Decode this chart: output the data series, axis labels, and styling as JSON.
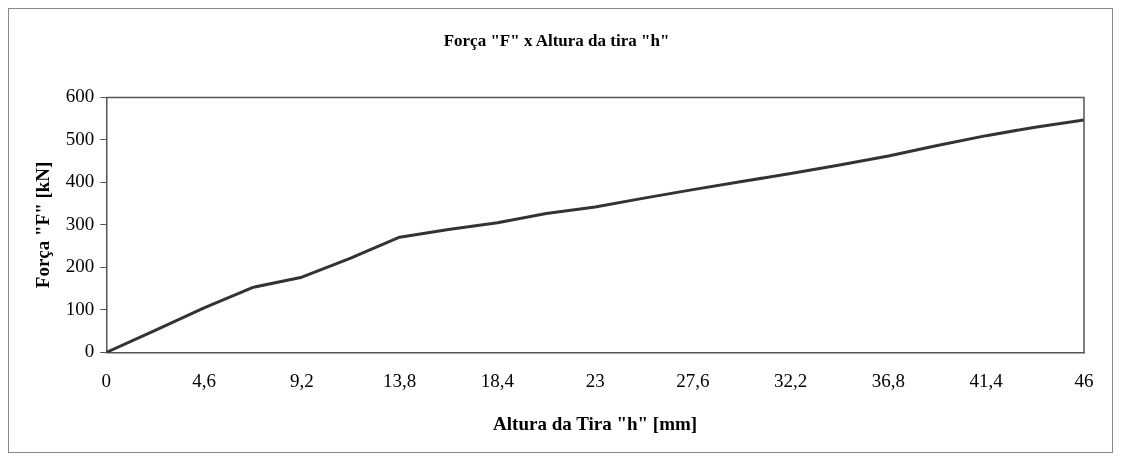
{
  "chart_data": {
    "type": "line",
    "title": "Força \"F\" x Altura da tira \"h\"",
    "xlabel": "Altura da Tira \"h\" [mm]",
    "ylabel": "Força \"F\" [kN]",
    "x": [
      0,
      2.3,
      4.6,
      6.9,
      9.2,
      11.5,
      13.8,
      16.1,
      18.4,
      20.7,
      23,
      25.3,
      27.6,
      29.9,
      32.2,
      34.5,
      36.8,
      39.1,
      41.4,
      43.7,
      46
    ],
    "series": [
      {
        "color": "#333333",
        "values": [
          0,
          52,
          105,
          153,
          177,
          222,
          271,
          289,
          305,
          327,
          342,
          363,
          383,
          402,
          421,
          441,
          462,
          487,
          510,
          530,
          547
        ]
      }
    ],
    "xlim": [
      0,
      46
    ],
    "xticks": [
      0,
      {
        "value": 4.6,
        "label": "4,6"
      },
      {
        "value": 9.2,
        "label": "9,2"
      },
      {
        "value": 13.8,
        "label": "13,8"
      },
      {
        "value": 18.4,
        "label": "18,4"
      },
      23,
      {
        "value": 27.6,
        "label": "27,6"
      },
      {
        "value": 32.2,
        "label": "32,2"
      },
      {
        "value": 36.8,
        "label": "36,8"
      },
      {
        "value": 41.4,
        "label": "41,4"
      },
      46
    ],
    "ylim": [
      0,
      600
    ],
    "yticks": [
      0,
      100,
      200,
      300,
      400,
      500,
      600
    ],
    "grid": false,
    "legend": false,
    "marker": "none",
    "line_style": "solid"
  }
}
